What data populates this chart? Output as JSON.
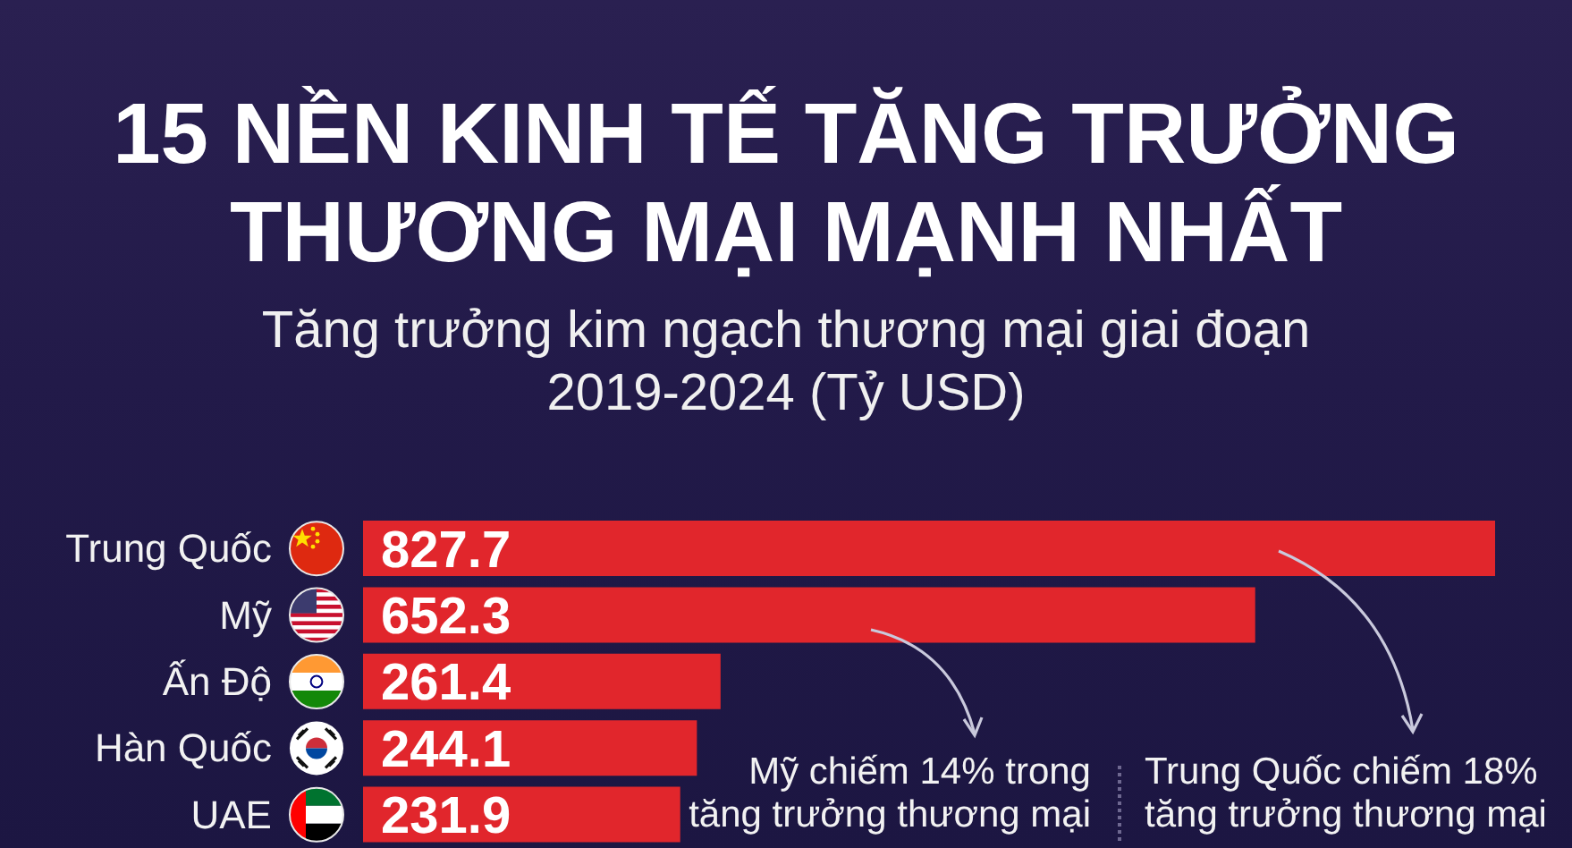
{
  "chart_data": {
    "type": "bar",
    "orientation": "horizontal",
    "title": "15 NỀN KINH TẾ TĂNG TRƯỞNG\nTHƯƠNG MẠI MẠNH NHẤT",
    "subtitle": "Tăng trưởng kim ngạch thương mại giai đoạn\n2019-2024 (Tỷ USD)",
    "categories": [
      "Trung Quốc",
      "Mỹ",
      "Ấn Độ",
      "Hàn Quốc",
      "UAE"
    ],
    "values": [
      827.7,
      652.3,
      261.4,
      244.1,
      231.9
    ],
    "color": "#e1262c",
    "data_labels": true,
    "annotations": [
      "Mỹ chiếm 14% trong\ntăng trưởng thương mại",
      "Trung Quốc chiếm 18%\ntăng trưởng thương mại"
    ]
  }
}
